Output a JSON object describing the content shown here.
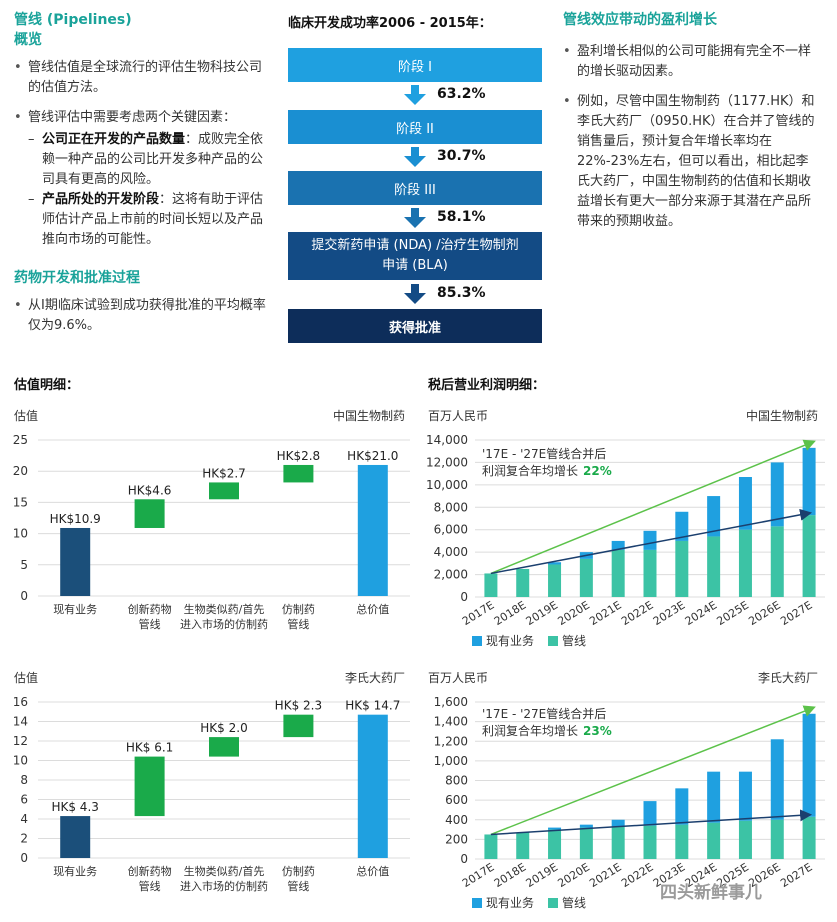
{
  "left": {
    "title": "管线 (Pipelines)",
    "subtitle": "概览",
    "b1": "管线估值是全球流行的评估生物科技公司的估值方法。",
    "b2": "管线评估中需要考虑两个关键因素：",
    "s1_bold": "公司正在开发的产品数量",
    "s1_rest": "：成败完全依赖一种产品的公司比开发多种产品的公司具有更高的风险。",
    "s2_bold": "产品所处的开发阶段",
    "s2_rest": "：这将有助于评估师估计产品上市前的时间长短以及产品推向市场的可能性。",
    "title2": "药物开发和批准过程",
    "b3": "从I期临床试验到成功获得批准的平均概率仅为9.6%。"
  },
  "mid": {
    "title": "临床开发成功率2006 - 2015年：",
    "steps": [
      "阶段 I",
      "阶段 II",
      "阶段 III",
      "提交新药申请 (NDA) /治疗生物制剂申请 (BLA)",
      "获得批准"
    ],
    "rates": [
      "63.2%",
      "30.7%",
      "58.1%",
      "85.3%"
    ]
  },
  "right": {
    "title": "管线效应带动的盈利增长",
    "b1": "盈利增长相似的公司可能拥有完全不一样的增长驱动因素。",
    "b2": "例如，尽管中国生物制药（1177.HK）和李氏大药厂（0950.HK）在合并了管线的销售量后，预计复合年增长率均在22%-23%左右，但可以看出，相比起李氏大药厂，中国生物制药的估值和长期收益增长有更大一部分来源于其潜在产品所带来的预期收益。"
  },
  "sec": {
    "valuation": "估值明细：",
    "profit": "税后营业利润明细："
  },
  "colors": {
    "dark_blue": "#1b4f7a",
    "green": "#1aaa4a",
    "light_blue": "#1fa0e0",
    "teal": "#3cc3a5",
    "navy": "#0d2d5a"
  },
  "watermark": "四头新鲜事儿",
  "chart_data": [
    {
      "type": "bar",
      "subtype": "waterfall",
      "company": "中国生物制药",
      "ylabel": "估值",
      "ylim": [
        0,
        25
      ],
      "yticks": [
        0,
        5,
        10,
        15,
        20,
        25
      ],
      "categories": [
        "现有业务",
        "创新药物\n管线",
        "生物类似药/首先\n进入市场的仿制药",
        "仿制药\n管线",
        "总价值"
      ],
      "values": [
        10.9,
        4.6,
        2.7,
        2.8,
        21.0
      ],
      "labels": [
        "HK$10.9",
        "HK$4.6",
        "HK$2.7",
        "HK$2.8",
        "HK$21.0"
      ]
    },
    {
      "type": "bar",
      "subtype": "stacked",
      "company": "中国生物制药",
      "ylabel": "百万人民币",
      "ylim": [
        0,
        14000
      ],
      "yticks": [
        0,
        2000,
        4000,
        6000,
        8000,
        10000,
        12000,
        14000
      ],
      "ytick_labels": [
        "0",
        "2,000",
        "4,000",
        "6,000",
        "8,000",
        "10,000",
        "12,000",
        "14,000"
      ],
      "categories": [
        "2017E",
        "2018E",
        "2019E",
        "2020E",
        "2021E",
        "2022E",
        "2023E",
        "2024E",
        "2025E",
        "2026E",
        "2027E"
      ],
      "series": [
        {
          "name": "现有业务",
          "values": [
            0,
            0,
            200,
            600,
            800,
            1700,
            2600,
            3600,
            4700,
            5700,
            6000
          ]
        },
        {
          "name": "管线",
          "values": [
            2100,
            2500,
            2900,
            3400,
            4200,
            4200,
            5000,
            5400,
            6000,
            6300,
            7300
          ]
        }
      ],
      "legend": "bottom",
      "annotation_line1": "'17E - '27E管线合并后",
      "annotation_line2": "利润复合年均增长",
      "annotation_pct": "22%"
    },
    {
      "type": "bar",
      "subtype": "waterfall",
      "company": "李氏大药厂",
      "ylabel": "估值",
      "ylim": [
        0,
        16
      ],
      "yticks": [
        0,
        2,
        4,
        6,
        8,
        10,
        12,
        14,
        16
      ],
      "categories": [
        "现有业务",
        "创新药物\n管线",
        "生物类似药/首先\n进入市场的仿制药",
        "仿制药\n管线",
        "总价值"
      ],
      "values": [
        4.3,
        6.1,
        2.0,
        2.3,
        14.7
      ],
      "labels": [
        "HK$ 4.3",
        "HK$ 6.1",
        "HK$ 2.0",
        "HK$ 2.3",
        "HK$ 14.7"
      ]
    },
    {
      "type": "bar",
      "subtype": "stacked",
      "company": "李氏大药厂",
      "ylabel": "百万人民币",
      "ylim": [
        0,
        1600
      ],
      "yticks": [
        0,
        200,
        400,
        600,
        800,
        1000,
        1200,
        1400,
        1600
      ],
      "ytick_labels": [
        "0",
        "200",
        "400",
        "600",
        "800",
        "1,000",
        "1,200",
        "1,400",
        "1,600"
      ],
      "categories": [
        "2017E",
        "2018E",
        "2019E",
        "2020E",
        "2021E",
        "2022E",
        "2023E",
        "2024E",
        "2025E",
        "2026E",
        "2027E"
      ],
      "series": [
        {
          "name": "现有业务",
          "values": [
            0,
            0,
            20,
            30,
            70,
            250,
            370,
            520,
            500,
            820,
            1050
          ]
        },
        {
          "name": "管线",
          "values": [
            250,
            270,
            300,
            320,
            330,
            340,
            350,
            370,
            390,
            400,
            430
          ]
        }
      ],
      "legend": "bottom",
      "annotation_line1": "'17E - '27E管线合并后",
      "annotation_line2": "利润复合年均增长",
      "annotation_pct": "23%"
    }
  ]
}
